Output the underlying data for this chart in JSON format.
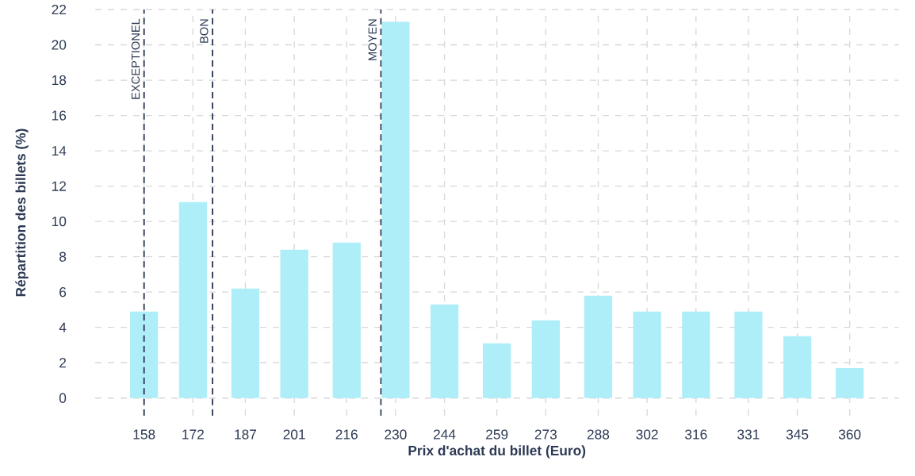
{
  "chart_data": {
    "type": "bar",
    "xlabel": "Prix d'achat du billet (Euro)",
    "ylabel": "Répartition des billets (%)",
    "x": [
      158,
      172,
      187,
      201,
      216,
      230,
      244,
      259,
      273,
      288,
      302,
      316,
      331,
      345,
      360
    ],
    "values": [
      4.9,
      11.1,
      6.2,
      8.4,
      8.8,
      21.3,
      5.3,
      3.1,
      4.4,
      5.8,
      4.9,
      4.9,
      4.9,
      3.5,
      1.7
    ],
    "color": "#aeeef8",
    "xlim": [
      144,
      374
    ],
    "xticks": [
      158,
      172,
      187,
      201,
      216,
      230,
      244,
      259,
      273,
      288,
      302,
      316,
      331,
      345,
      360
    ],
    "ylim": [
      -1,
      22
    ],
    "yticks": [
      0,
      2,
      4,
      6,
      8,
      10,
      12,
      14,
      16,
      18,
      20,
      22
    ],
    "grid": true,
    "ref_lines": [
      {
        "axis": "x",
        "value": 158,
        "label": "EXCEPTIONEL",
        "color": "#2d3a55",
        "line_style": "dashed"
      },
      {
        "axis": "x",
        "value": 177.6,
        "label": "BON",
        "color": "#2d3a55",
        "line_style": "dashed"
      },
      {
        "axis": "x",
        "value": 225.8,
        "label": "MOYEN",
        "color": "#2d3a55",
        "line_style": "dashed"
      }
    ]
  }
}
